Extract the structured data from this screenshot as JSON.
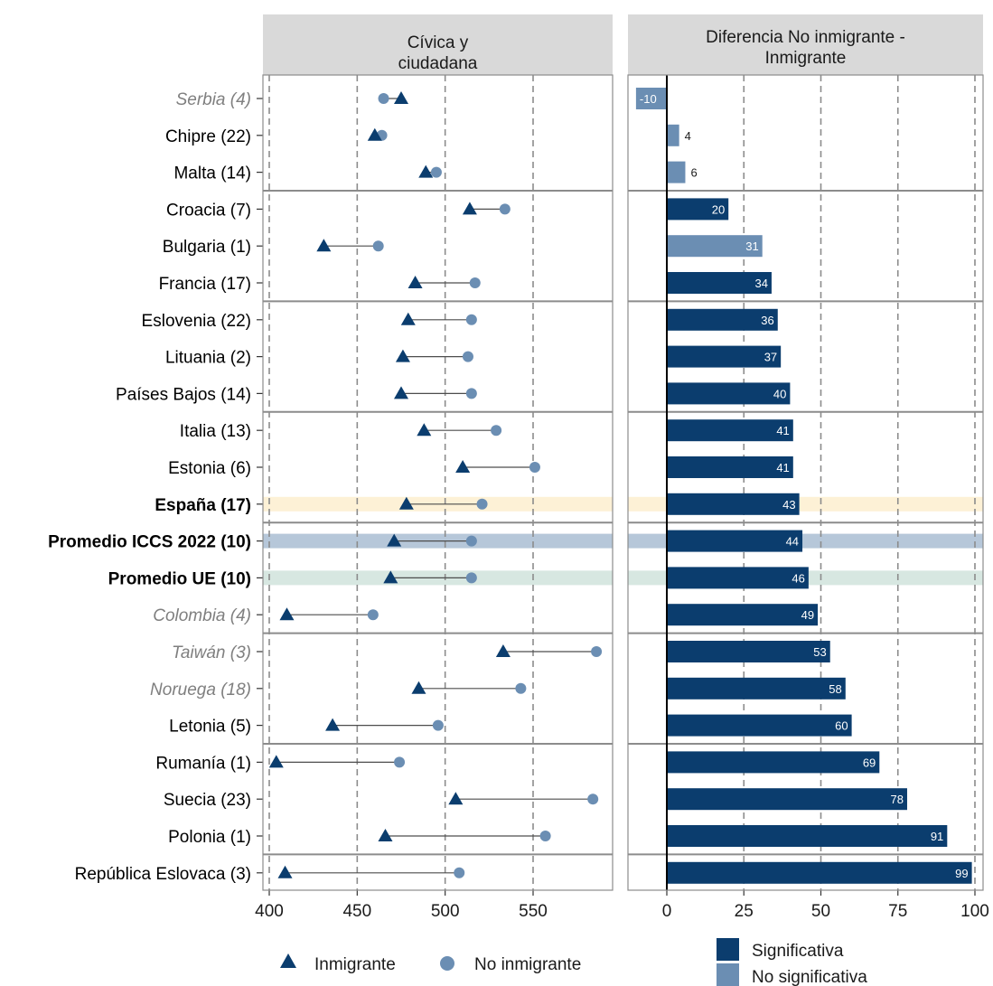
{
  "chart_data": {
    "type": "dumbbell+bar",
    "panel_left": {
      "title_line1": "Cívica y",
      "title_line2": "ciudadana",
      "xlim": [
        395,
        595
      ],
      "ticks": [
        400,
        450,
        500,
        550
      ],
      "tick_labels": [
        "400",
        "450",
        "500",
        "550"
      ]
    },
    "panel_right": {
      "title_line1": "Diferencia No inmigrante -",
      "title_line2": "Inmigrante",
      "xlim": [
        -13,
        102
      ],
      "ticks": [
        0,
        25,
        50,
        75,
        100
      ],
      "tick_labels": [
        "0",
        "25",
        "50",
        "75",
        "100"
      ]
    },
    "rows": [
      {
        "label": "Serbia (4)",
        "style": "italic",
        "inmigrante": 475,
        "no_inmigrante": 465,
        "diff": -10,
        "diff_label": "-10",
        "significant": false,
        "highlight": ""
      },
      {
        "label": "Chipre (22)",
        "style": "normal",
        "inmigrante": 460,
        "no_inmigrante": 464,
        "diff": 4,
        "diff_label": "4",
        "significant": false,
        "highlight": ""
      },
      {
        "label": "Malta (14)",
        "style": "normal",
        "inmigrante": 489,
        "no_inmigrante": 495,
        "diff": 6,
        "diff_label": "6",
        "significant": false,
        "highlight": ""
      },
      {
        "label": "Croacia (7)",
        "style": "normal",
        "inmigrante": 514,
        "no_inmigrante": 534,
        "diff": 20,
        "diff_label": "20",
        "significant": true,
        "highlight": ""
      },
      {
        "label": "Bulgaria (1)",
        "style": "normal",
        "inmigrante": 431,
        "no_inmigrante": 462,
        "diff": 31,
        "diff_label": "31",
        "significant": false,
        "highlight": ""
      },
      {
        "label": "Francia (17)",
        "style": "normal",
        "inmigrante": 483,
        "no_inmigrante": 517,
        "diff": 34,
        "diff_label": "34",
        "significant": true,
        "highlight": ""
      },
      {
        "label": "Eslovenia (22)",
        "style": "normal",
        "inmigrante": 479,
        "no_inmigrante": 515,
        "diff": 36,
        "diff_label": "36",
        "significant": true,
        "highlight": ""
      },
      {
        "label": "Lituania (2)",
        "style": "normal",
        "inmigrante": 476,
        "no_inmigrante": 513,
        "diff": 37,
        "diff_label": "37",
        "significant": true,
        "highlight": ""
      },
      {
        "label": "Países Bajos (14)",
        "style": "normal",
        "inmigrante": 475,
        "no_inmigrante": 515,
        "diff": 40,
        "diff_label": "40",
        "significant": true,
        "highlight": ""
      },
      {
        "label": "Italia (13)",
        "style": "normal",
        "inmigrante": 488,
        "no_inmigrante": 529,
        "diff": 41,
        "diff_label": "41",
        "significant": true,
        "highlight": ""
      },
      {
        "label": "Estonia (6)",
        "style": "normal",
        "inmigrante": 510,
        "no_inmigrante": 551,
        "diff": 41,
        "diff_label": "41",
        "significant": true,
        "highlight": ""
      },
      {
        "label": "España (17)",
        "style": "bold",
        "inmigrante": 478,
        "no_inmigrante": 521,
        "diff": 43,
        "diff_label": "43",
        "significant": true,
        "highlight": "#fdf1d6"
      },
      {
        "label": "Promedio ICCS 2022 (10)",
        "style": "bold",
        "inmigrante": 471,
        "no_inmigrante": 515,
        "diff": 44,
        "diff_label": "44",
        "significant": true,
        "highlight": "#b6c7d9"
      },
      {
        "label": "Promedio UE (10)",
        "style": "bold",
        "inmigrante": 469,
        "no_inmigrante": 515,
        "diff": 46,
        "diff_label": "46",
        "significant": true,
        "highlight": "#d7e7e1"
      },
      {
        "label": "Colombia (4)",
        "style": "italic",
        "inmigrante": 410,
        "no_inmigrante": 459,
        "diff": 49,
        "diff_label": "49",
        "significant": true,
        "highlight": ""
      },
      {
        "label": "Taiwán (3)",
        "style": "italic",
        "inmigrante": 533,
        "no_inmigrante": 586,
        "diff": 53,
        "diff_label": "53",
        "significant": true,
        "highlight": ""
      },
      {
        "label": "Noruega (18)",
        "style": "italic",
        "inmigrante": 485,
        "no_inmigrante": 543,
        "diff": 58,
        "diff_label": "58",
        "significant": true,
        "highlight": ""
      },
      {
        "label": "Letonia (5)",
        "style": "normal",
        "inmigrante": 436,
        "no_inmigrante": 496,
        "diff": 60,
        "diff_label": "60",
        "significant": true,
        "highlight": ""
      },
      {
        "label": "Rumanía (1)",
        "style": "normal",
        "inmigrante": 404,
        "no_inmigrante": 474,
        "diff": 69,
        "diff_label": "69",
        "significant": true,
        "highlight": ""
      },
      {
        "label": "Suecia (23)",
        "style": "normal",
        "inmigrante": 506,
        "no_inmigrante": 584,
        "diff": 78,
        "diff_label": "78",
        "significant": true,
        "highlight": ""
      },
      {
        "label": "Polonia (1)",
        "style": "normal",
        "inmigrante": 466,
        "no_inmigrante": 557,
        "diff": 91,
        "diff_label": "91",
        "significant": true,
        "highlight": ""
      },
      {
        "label": "República Eslovaca (3)",
        "style": "normal",
        "inmigrante": 409,
        "no_inmigrante": 508,
        "diff": 99,
        "diff_label": "99",
        "significant": true,
        "highlight": ""
      }
    ],
    "group_separators_after_rows": [
      2,
      5,
      8,
      11,
      14,
      17,
      20
    ],
    "legend": {
      "inmigrante": "Inmigrante",
      "no_inmigrante": "No inmigrante",
      "significativa": "Significativa",
      "no_significativa": "No significativa"
    },
    "colors": {
      "inmigrante": "#0b3d6e",
      "no_inmigrante": "#6b8eb3",
      "significativa": "#0b3d6e",
      "no_significativa": "#6b8eb3",
      "strip": "#d9d9d9"
    }
  }
}
